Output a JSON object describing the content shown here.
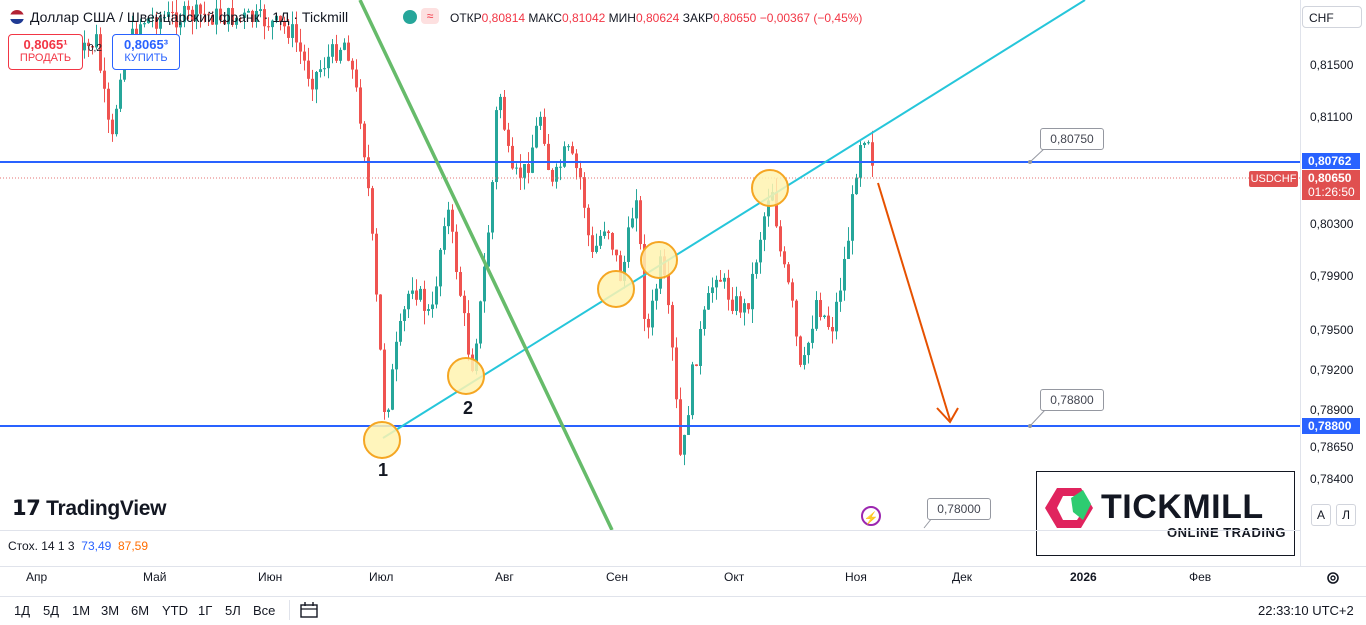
{
  "header": {
    "title": "Доллар США / Швейцарский франк · 1Д · Tickmill",
    "ohlc": {
      "open_label": "ОТКР",
      "open": "0,80814",
      "high_label": "МАКС",
      "high": "0,81042",
      "low_label": "МИН",
      "low": "0,80624",
      "close_label": "ЗАКР",
      "close": "0,80650",
      "change": "−0,00367 (−0,45%)"
    }
  },
  "trade": {
    "sell_price": "0,8065¹",
    "sell_label": "ПРОДАТЬ",
    "spread": "0,2",
    "buy_price": "0,8065³",
    "buy_label": "КУПИТЬ"
  },
  "price_axis": {
    "currency": "CHF",
    "ticks": [
      "0,81500",
      "0,81100",
      "0,80300",
      "0,79900",
      "0,79500",
      "0,79200",
      "0,78900",
      "0,78650",
      "0,78400"
    ],
    "level_upper": "0,80762",
    "current_price": "0,80650",
    "countdown": "01:26:50",
    "level_lower": "0,78800"
  },
  "symbol_tag": "USDCHF",
  "callouts": [
    "0,80750",
    "0,78800",
    "0,78000"
  ],
  "circle_labels": [
    "1",
    "2"
  ],
  "branding": {
    "tradingview": "TradingView",
    "tickmill_name": "TICKMILL",
    "tickmill_sub": "ONLINE TRADING"
  },
  "indicator": {
    "name": "Стох. 14 1 3",
    "k": "73,49",
    "d": "87,59"
  },
  "time_axis": [
    "Апр",
    "Май",
    "Июн",
    "Июл",
    "Авг",
    "Сен",
    "Окт",
    "Ноя",
    "Дек",
    "2026",
    "Фев"
  ],
  "periods": [
    "1Д",
    "5Д",
    "1М",
    "3М",
    "6М",
    "YTD",
    "1Г",
    "5Л",
    "Все"
  ],
  "clock": "22:33:10 UTC+2",
  "scale_buttons": [
    "A",
    "Л"
  ],
  "colors": {
    "up": "#26a69a",
    "down": "#ef5350",
    "level": "#2962ff",
    "trendline": "#26c6da",
    "downtrend": "#66bb6a",
    "arrow": "#e65100",
    "circle_fill": "#fff3b0",
    "circle_stroke": "#f5a623"
  }
}
